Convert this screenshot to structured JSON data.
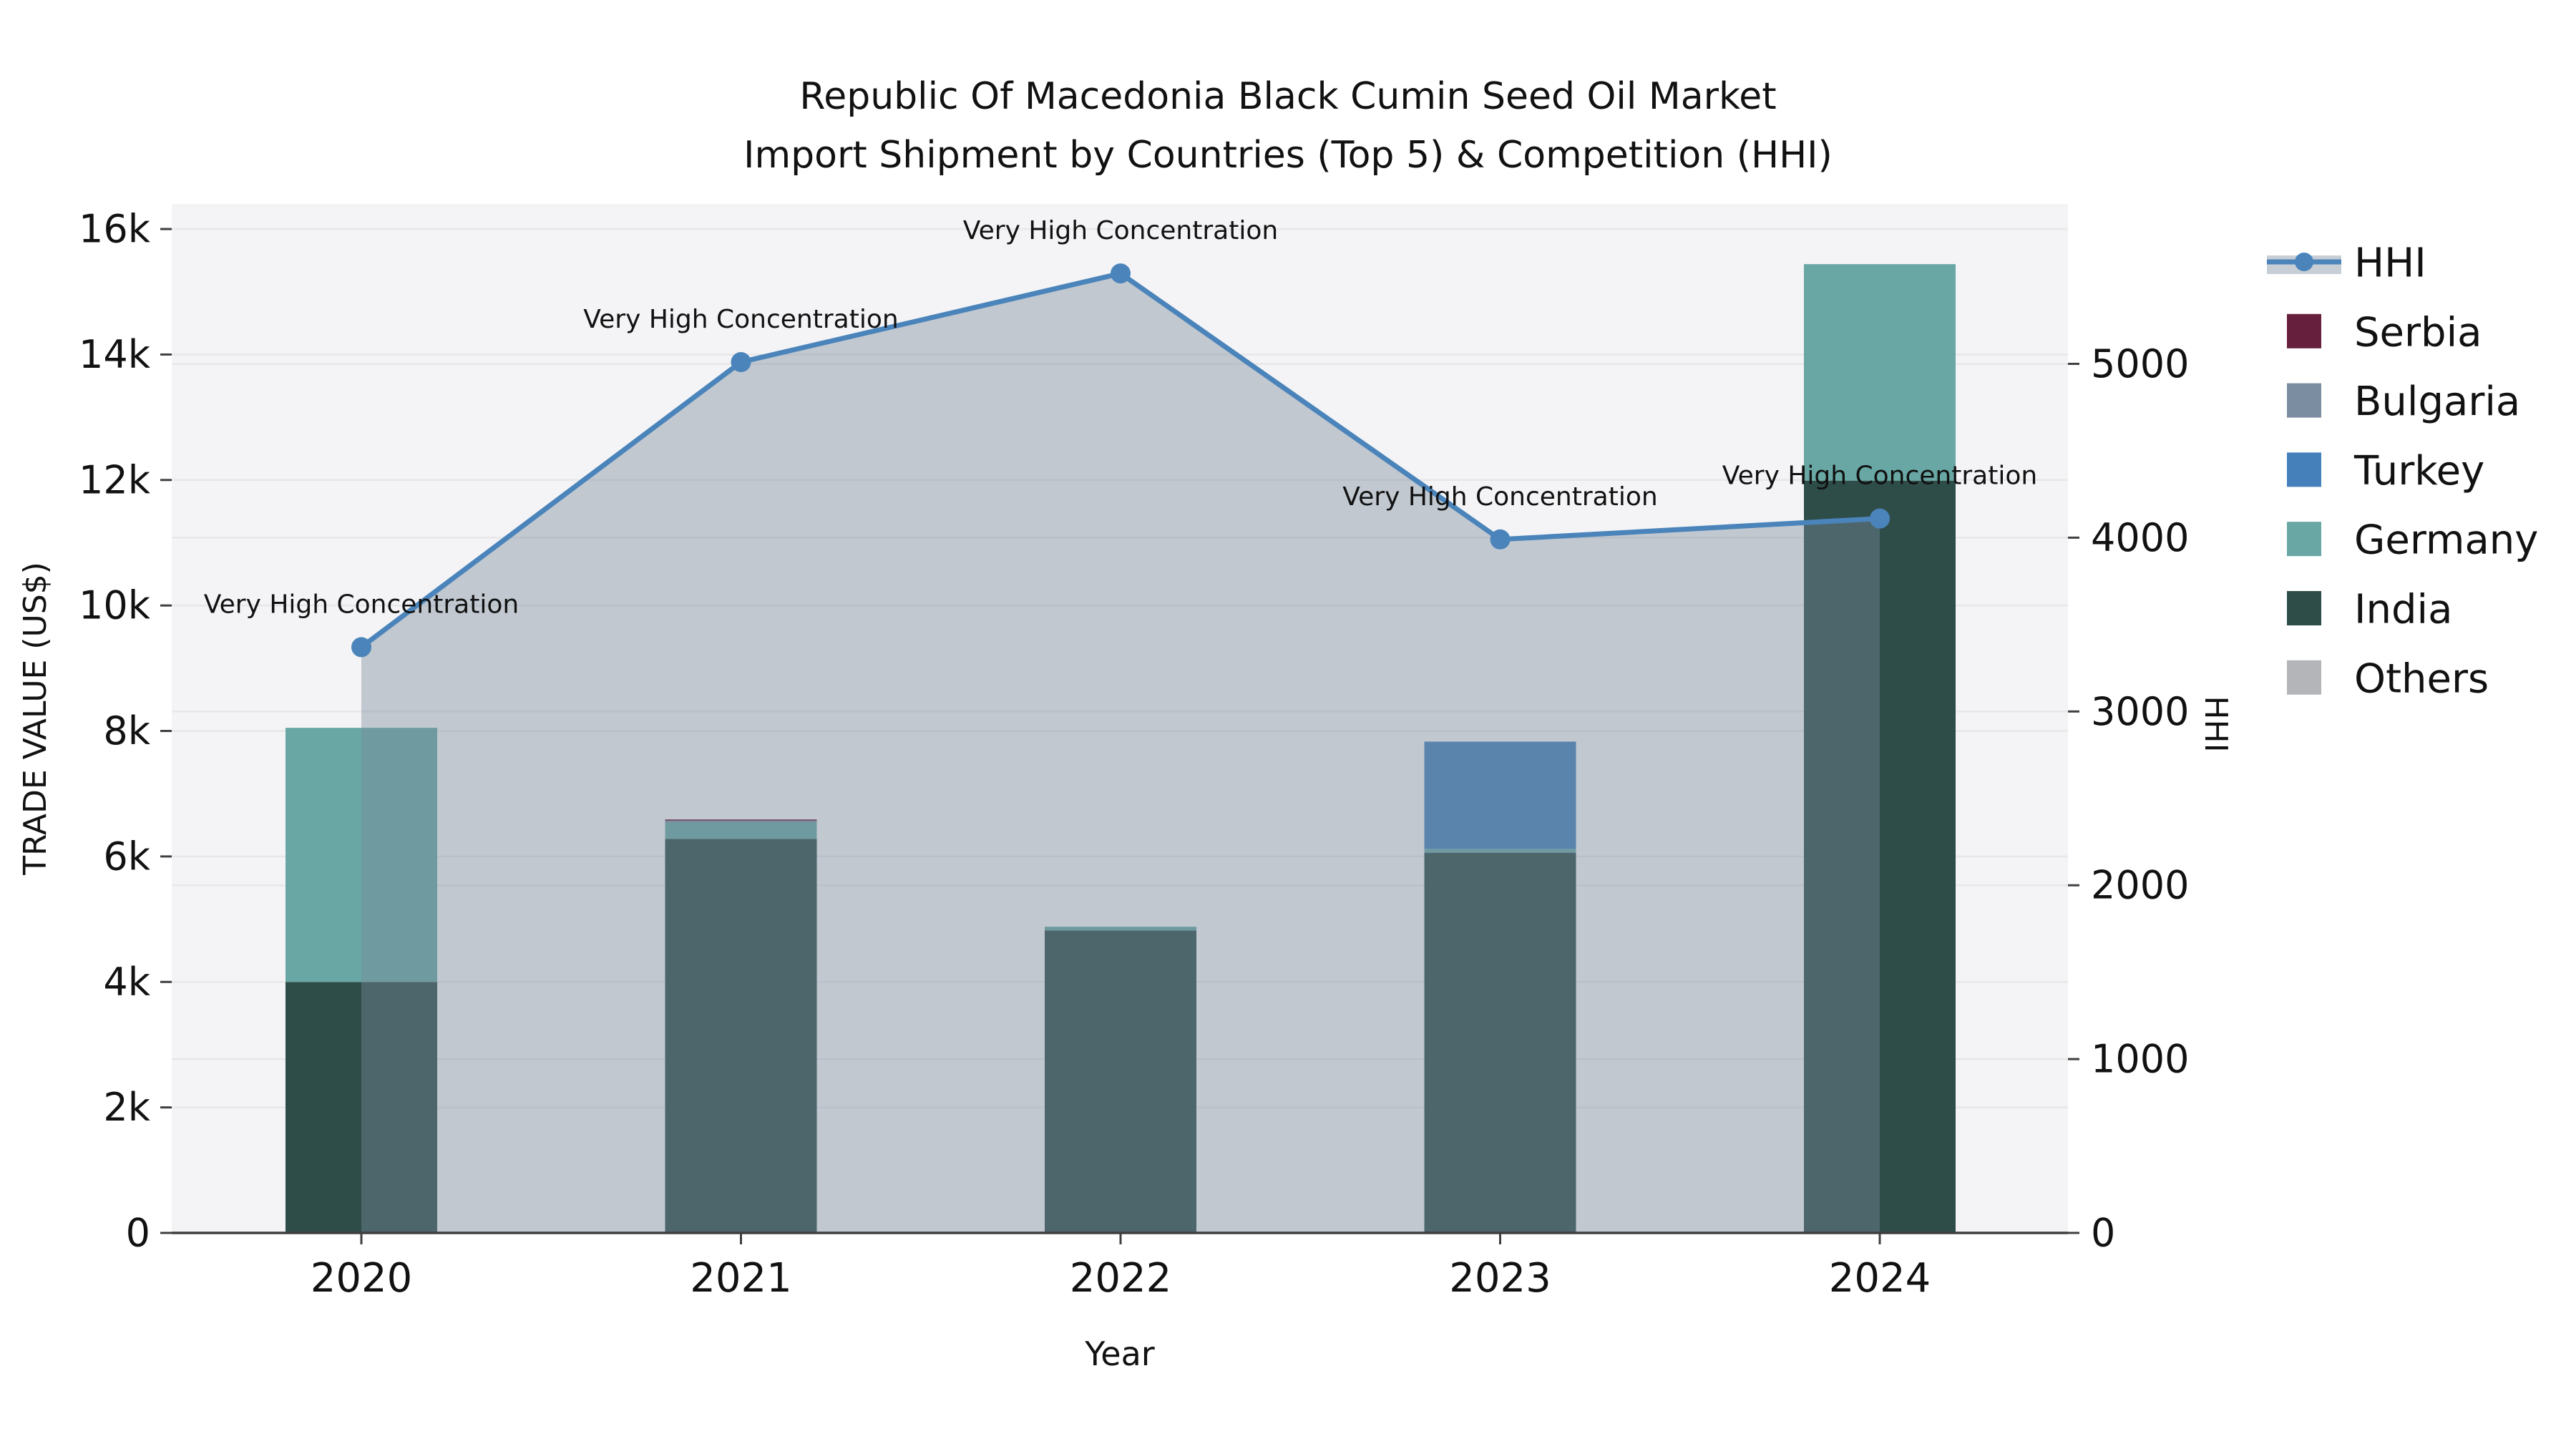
{
  "title": {
    "line1": "Republic Of Macedonia Black Cumin Seed Oil Market",
    "line2": "Import Shipment by Countries (Top 5) & Competition (HHI)"
  },
  "axes": {
    "x": {
      "label": "Year",
      "categories": [
        "2020",
        "2021",
        "2022",
        "2023",
        "2024"
      ]
    },
    "y_left": {
      "label": "TRADE VALUE (US$)",
      "max": 16400,
      "ticks": [
        {
          "v": 0,
          "t": "0"
        },
        {
          "v": 2000,
          "t": "2k"
        },
        {
          "v": 4000,
          "t": "4k"
        },
        {
          "v": 6000,
          "t": "6k"
        },
        {
          "v": 8000,
          "t": "8k"
        },
        {
          "v": 10000,
          "t": "10k"
        },
        {
          "v": 12000,
          "t": "12k"
        },
        {
          "v": 14000,
          "t": "14k"
        },
        {
          "v": 16000,
          "t": "16k"
        }
      ]
    },
    "y_right": {
      "label": "HHI",
      "max": 5920,
      "ticks": [
        {
          "v": 0,
          "t": "0"
        },
        {
          "v": 1000,
          "t": "1000"
        },
        {
          "v": 2000,
          "t": "2000"
        },
        {
          "v": 3000,
          "t": "3000"
        },
        {
          "v": 4000,
          "t": "4000"
        },
        {
          "v": 5000,
          "t": "5000"
        }
      ]
    }
  },
  "chart_data": {
    "type": "bar+line",
    "categories": [
      "2020",
      "2021",
      "2022",
      "2023",
      "2024"
    ],
    "bar_unit": "US$",
    "stack_order_bottom_to_top": [
      "India",
      "Germany",
      "Turkey",
      "Bulgaria",
      "Serbia",
      "Others"
    ],
    "series": [
      {
        "name": "India",
        "color_key": "india",
        "values": [
          4000,
          6280,
          4820,
          6060,
          11990
        ]
      },
      {
        "name": "Germany",
        "color_key": "germany",
        "values": [
          4050,
          260,
          60,
          60,
          3450
        ]
      },
      {
        "name": "Turkey",
        "color_key": "turkey",
        "values": [
          0,
          0,
          0,
          1710,
          0
        ]
      },
      {
        "name": "Bulgaria",
        "color_key": "bulgaria",
        "values": [
          0,
          30,
          0,
          0,
          0
        ]
      },
      {
        "name": "Serbia",
        "color_key": "serbia",
        "values": [
          0,
          20,
          0,
          0,
          0
        ]
      },
      {
        "name": "Others",
        "color_key": "others",
        "values": [
          0,
          0,
          0,
          0,
          0
        ]
      }
    ],
    "line_series": {
      "name": "HHI",
      "axis": "right",
      "values": [
        3370,
        5010,
        5520,
        3990,
        4110
      ],
      "annotation": "Very High Concentration"
    },
    "ylim_left": [
      0,
      16400
    ],
    "ylim_right": [
      0,
      5920
    ],
    "grid": true,
    "legend_position": "right-outside"
  },
  "legend": {
    "items": [
      {
        "label": "HHI",
        "swatch": "line",
        "color_key": "hhi_line"
      },
      {
        "label": "Serbia",
        "swatch": "box",
        "color_key": "serbia"
      },
      {
        "label": "Bulgaria",
        "swatch": "box",
        "color_key": "bulgaria"
      },
      {
        "label": "Turkey",
        "swatch": "box",
        "color_key": "turkey"
      },
      {
        "label": "Germany",
        "swatch": "box",
        "color_key": "germany"
      },
      {
        "label": "India",
        "swatch": "box",
        "color_key": "india"
      },
      {
        "label": "Others",
        "swatch": "box",
        "color_key": "others"
      }
    ]
  },
  "colors": {
    "hhi_line": "#4a84ba",
    "hhi_area": "rgba(122,138,156,0.42)",
    "serbia": "#671f3e",
    "bulgaria": "#7b8da0",
    "turkey": "#4580bb",
    "germany": "#68a7a4",
    "india": "#2e4d49",
    "others": "#b3b5b8",
    "plot_bg": "#f4f4f6",
    "grid": "#e7e7ea",
    "axis": "#3f3f3f",
    "text": "#111111"
  }
}
